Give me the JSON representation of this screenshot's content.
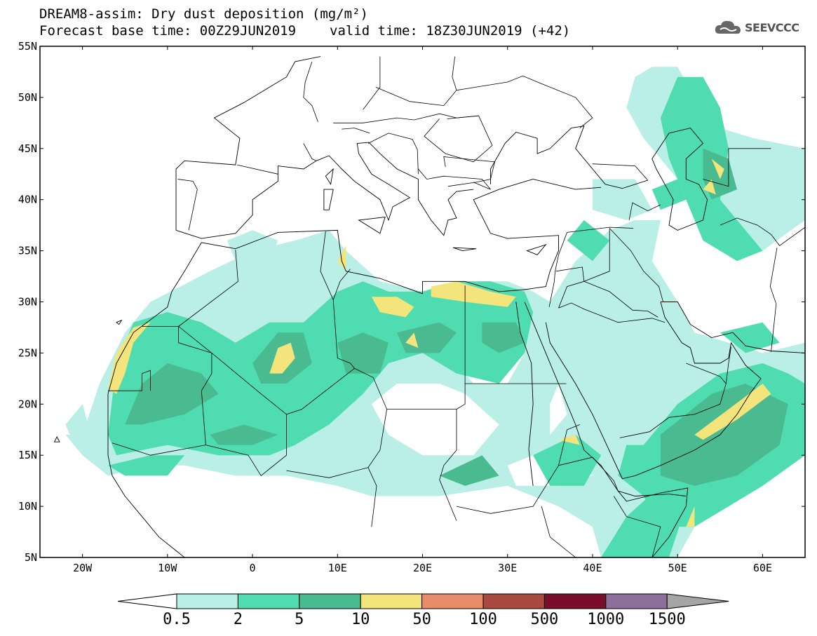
{
  "title": {
    "line1": "DREAM8-assim: Dry dust deposition (mg/m²)",
    "base_time": "Forecast base time: 00Z29JUN2019",
    "valid_time": "valid time: 18Z30JUN2019 (+42)"
  },
  "logo": {
    "text": "SEEVCCC",
    "icon": "cloud-icon"
  },
  "map": {
    "lat_labels": [
      "55N",
      "50N",
      "45N",
      "40N",
      "35N",
      "30N",
      "25N",
      "20N",
      "15N",
      "10N",
      "5N"
    ],
    "lon_labels": [
      "20W",
      "10W",
      "0",
      "10E",
      "20E",
      "30E",
      "40E",
      "50E",
      "60E"
    ],
    "lon_range": [
      -25,
      65
    ],
    "lat_range": [
      5,
      55
    ]
  },
  "legend": {
    "labels": [
      "0.5",
      "2",
      "5",
      "10",
      "50",
      "100",
      "500",
      "1000",
      "1500"
    ],
    "colors": [
      "#ffffff",
      "#b9efe6",
      "#4fdcb0",
      "#4aba91",
      "#f3e47c",
      "#e98c6a",
      "#a9493f",
      "#7a0d2a",
      "#8d6f9c",
      "#a5a5a5"
    ]
  }
}
